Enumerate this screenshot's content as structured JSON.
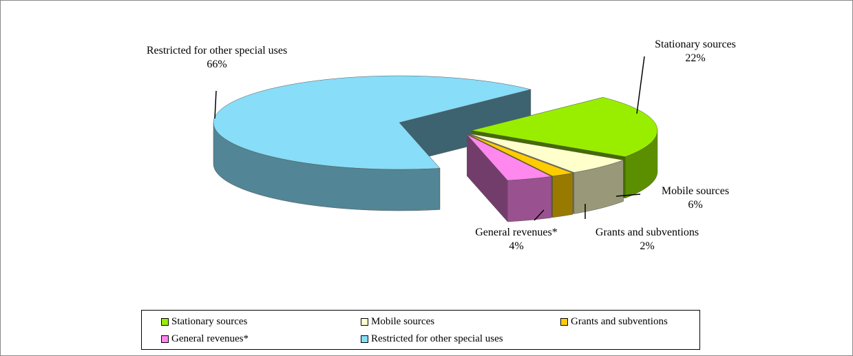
{
  "chart_data": {
    "type": "pie3d",
    "categories": [
      "Stationary sources",
      "Mobile sources",
      "Grants and subventions",
      "General revenues*",
      "Restricted for other special uses"
    ],
    "values": [
      22,
      6,
      2,
      4,
      66
    ],
    "value_labels": [
      "22%",
      "6%",
      "2%",
      "4%",
      "66%"
    ],
    "colors": [
      "#99ee00",
      "#ffffcc",
      "#ffcc00",
      "#ff88ee",
      "#88ddf8"
    ],
    "legend": "bottom"
  }
}
